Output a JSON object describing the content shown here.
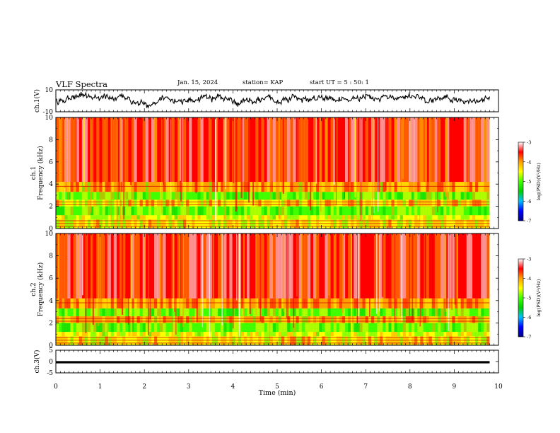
{
  "header": {
    "title": "VLF Spectra",
    "date": "Jan. 15, 2024",
    "station": "station= KAP",
    "start": "start UT =  5 : 50: 1"
  },
  "chart_data": [
    {
      "type": "line",
      "panel": "ch1-waveform",
      "ylabel": "ch.1(V)",
      "ylim": [
        -10,
        10
      ],
      "yticks": [
        "10",
        "-10"
      ],
      "xlim": [
        0,
        10
      ],
      "x_data_end": 9.8,
      "series": [
        {
          "values_description_only": false,
          "mean": 1,
          "amplitude": 4
        }
      ]
    },
    {
      "type": "heatmap",
      "panel": "ch1-spectrogram",
      "ylabel": "ch.1\nFrequency (kHz)",
      "ylim": [
        0,
        10
      ],
      "yticks": [
        "0",
        "2",
        "4",
        "6",
        "8",
        "10"
      ],
      "xlim": [
        0,
        10
      ],
      "x_data_end": 9.8,
      "bands_khz": [
        {
          "from": 0,
          "to": 0.8,
          "level": -4.4
        },
        {
          "from": 0.8,
          "to": 1.2,
          "level": -4.6
        },
        {
          "from": 1.2,
          "to": 2.0,
          "level": -4.9
        },
        {
          "from": 2.0,
          "to": 2.6,
          "level": -4.3
        },
        {
          "from": 2.6,
          "to": 3.3,
          "level": -4.8
        },
        {
          "from": 3.3,
          "to": 4.2,
          "level": -4.1
        },
        {
          "from": 4.2,
          "to": 10,
          "level": -3.6
        }
      ]
    },
    {
      "type": "heatmap",
      "panel": "ch2-spectrogram",
      "ylabel": "ch.2\nFrequency (kHz)",
      "ylim": [
        0,
        10
      ],
      "yticks": [
        "0",
        "2",
        "4",
        "6",
        "8",
        "10"
      ],
      "xlim": [
        0,
        10
      ],
      "x_data_end": 9.8,
      "bands_khz": [
        {
          "from": 0,
          "to": 0.8,
          "level": -4.3
        },
        {
          "from": 0.8,
          "to": 1.2,
          "level": -4.6
        },
        {
          "from": 1.2,
          "to": 2.0,
          "level": -4.8
        },
        {
          "from": 2.0,
          "to": 2.6,
          "level": -4.2
        },
        {
          "from": 2.6,
          "to": 3.3,
          "level": -4.8
        },
        {
          "from": 3.3,
          "to": 4.2,
          "level": -4.0
        },
        {
          "from": 4.2,
          "to": 10,
          "level": -3.5
        }
      ]
    },
    {
      "type": "line",
      "panel": "ch3-waveform",
      "ylabel": "ch.3(V)",
      "ylim": [
        -5,
        5
      ],
      "yticks": [
        "5",
        "0",
        "-5"
      ],
      "xlim": [
        0,
        10
      ],
      "x_data_end": 9.8,
      "series": [
        {
          "mean": -0.3,
          "amplitude": 0.5
        }
      ]
    }
  ],
  "xaxis": {
    "label": "Time (min)",
    "ticks": [
      "0",
      "1",
      "2",
      "3",
      "4",
      "5",
      "6",
      "7",
      "8",
      "9",
      "10"
    ]
  },
  "colorbar": {
    "label": "log(PSD)(V²/Hz)",
    "ticks": [
      "-3",
      "-4",
      "-5",
      "-6",
      "-7"
    ],
    "range": [
      -7,
      -3
    ],
    "colors": [
      "#000088",
      "#0000ff",
      "#00bfff",
      "#00d000",
      "#40ff00",
      "#ffff00",
      "#ffa000",
      "#ff0000",
      "#ffffff"
    ]
  }
}
